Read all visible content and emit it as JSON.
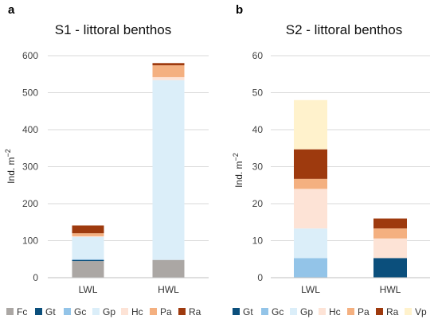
{
  "chart_data": [
    {
      "panel_label": "a",
      "type": "bar",
      "stacked": true,
      "title": "S1 - littoral benthos",
      "ylabel": "Ind. m",
      "ylabel_superscript": "−2",
      "categories": [
        "LWL",
        "HWL"
      ],
      "ylim": [
        0,
        600
      ],
      "yticks": [
        0,
        100,
        200,
        300,
        400,
        500,
        600
      ],
      "grid": true,
      "legend_position": "bottom",
      "series": [
        {
          "name": "Fc",
          "color": "#aba7a4",
          "values": [
            45,
            48
          ]
        },
        {
          "name": "Gt",
          "color": "#0b4f7c",
          "values": [
            3,
            0
          ]
        },
        {
          "name": "Gc",
          "color": "#93c4e8",
          "values": [
            2,
            0
          ]
        },
        {
          "name": "Gp",
          "color": "#dbeef9",
          "values": [
            60,
            486
          ]
        },
        {
          "name": "Hc",
          "color": "#fde3d6",
          "values": [
            2,
            8
          ]
        },
        {
          "name": "Pa",
          "color": "#f4b080",
          "values": [
            8,
            32
          ]
        },
        {
          "name": "Ra",
          "color": "#9e3a0e",
          "values": [
            21,
            6
          ]
        }
      ]
    },
    {
      "panel_label": "b",
      "type": "bar",
      "stacked": true,
      "title": "S2 - littoral benthos",
      "ylabel": "Ind. m",
      "ylabel_superscript": "−2",
      "categories": [
        "LWL",
        "HWL"
      ],
      "ylim": [
        0,
        60
      ],
      "yticks": [
        0,
        10,
        20,
        30,
        40,
        50,
        60
      ],
      "grid": true,
      "legend_position": "bottom",
      "series": [
        {
          "name": "Gt",
          "color": "#0b4f7c",
          "values": [
            0,
            5.3
          ]
        },
        {
          "name": "Gc",
          "color": "#93c4e8",
          "values": [
            5.3,
            0
          ]
        },
        {
          "name": "Gp",
          "color": "#dbeef9",
          "values": [
            8,
            0
          ]
        },
        {
          "name": "Hc",
          "color": "#fde3d6",
          "values": [
            10.7,
            5.3
          ]
        },
        {
          "name": "Pa",
          "color": "#f4b080",
          "values": [
            2.7,
            2.7
          ]
        },
        {
          "name": "Ra",
          "color": "#9e3a0e",
          "values": [
            8,
            2.7
          ]
        },
        {
          "name": "Vp",
          "color": "#fff2cc",
          "values": [
            13.3,
            0
          ]
        }
      ]
    }
  ]
}
